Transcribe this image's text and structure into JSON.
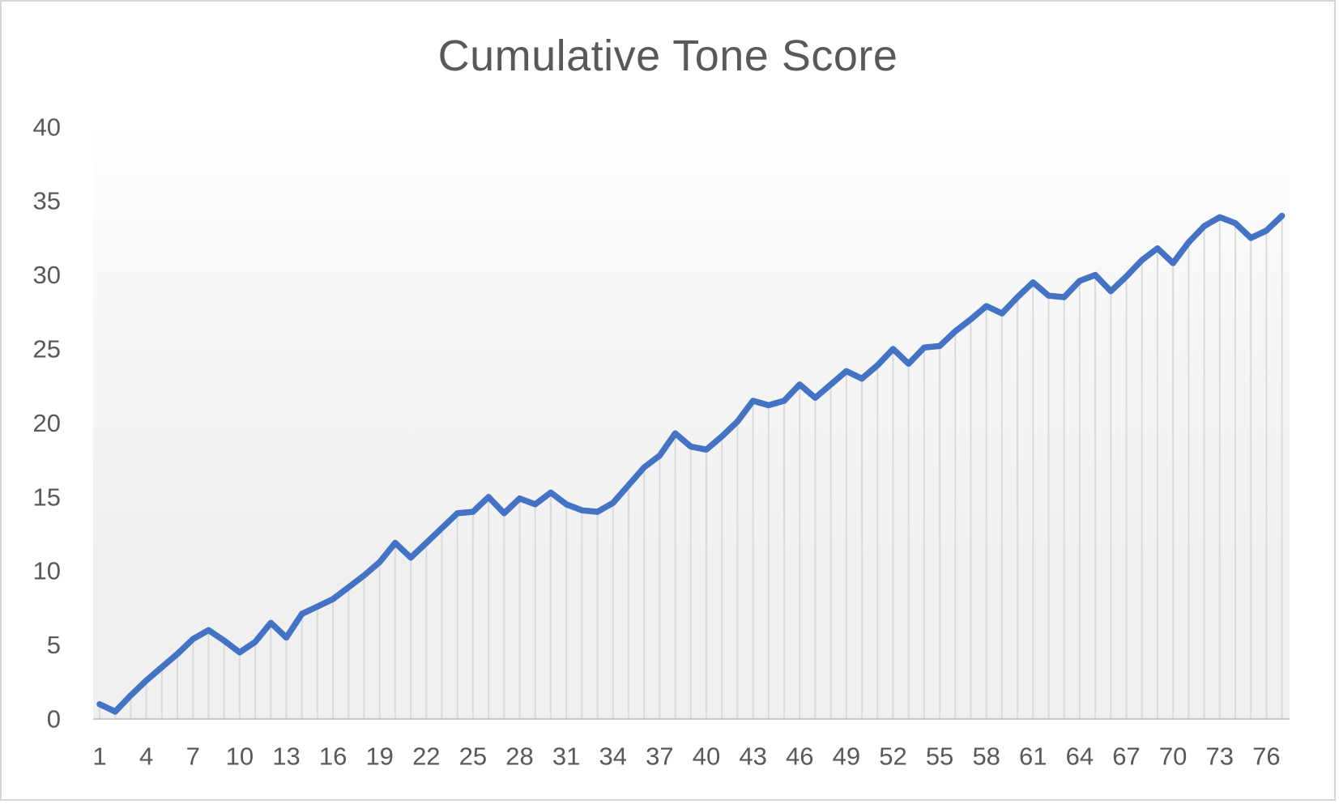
{
  "chart_data": {
    "type": "line",
    "title": "Cumulative Tone Score",
    "series_name": "Cumulative Tone Score",
    "x": [
      1,
      2,
      3,
      4,
      5,
      6,
      7,
      8,
      9,
      10,
      11,
      12,
      13,
      14,
      15,
      16,
      17,
      18,
      19,
      20,
      21,
      22,
      23,
      24,
      25,
      26,
      27,
      28,
      29,
      30,
      31,
      32,
      33,
      34,
      35,
      36,
      37,
      38,
      39,
      40,
      41,
      42,
      43,
      44,
      45,
      46,
      47,
      48,
      49,
      50,
      51,
      52,
      53,
      54,
      55,
      56,
      57,
      58,
      59,
      60,
      61,
      62,
      63,
      64,
      65,
      66,
      67,
      68,
      69,
      70,
      71,
      72,
      73,
      74,
      75,
      76,
      77
    ],
    "values": [
      1.0,
      0.5,
      1.6,
      2.6,
      3.5,
      4.4,
      5.4,
      6.0,
      5.3,
      4.5,
      5.2,
      6.5,
      5.5,
      7.1,
      7.6,
      8.1,
      8.9,
      9.7,
      10.6,
      11.9,
      10.9,
      11.9,
      12.9,
      13.9,
      14.0,
      15.0,
      13.9,
      14.9,
      14.5,
      15.3,
      14.5,
      14.1,
      14.0,
      14.6,
      15.8,
      17.0,
      17.8,
      19.3,
      18.4,
      18.2,
      19.1,
      20.1,
      21.5,
      21.2,
      21.5,
      22.6,
      21.7,
      22.6,
      23.5,
      23.0,
      23.9,
      25.0,
      24.0,
      25.1,
      25.2,
      26.2,
      27.0,
      27.9,
      27.4,
      28.5,
      29.5,
      28.6,
      28.5,
      29.6,
      30.0,
      28.9,
      29.9,
      31.0,
      31.8,
      30.8,
      32.2,
      33.3,
      33.9,
      33.5,
      32.5,
      33.0,
      34.0
    ],
    "xlabel": "",
    "ylabel": "",
    "ylim": [
      0,
      40
    ],
    "y_tick_step": 5,
    "y_tick_labels": [
      "0",
      "5",
      "10",
      "15",
      "20",
      "25",
      "30",
      "35",
      "40"
    ],
    "x_tick_labels": [
      "1",
      "4",
      "7",
      "10",
      "13",
      "16",
      "19",
      "22",
      "25",
      "28",
      "31",
      "34",
      "37",
      "40",
      "43",
      "46",
      "49",
      "52",
      "55",
      "58",
      "61",
      "64",
      "67",
      "70",
      "73",
      "76"
    ],
    "legend": "none",
    "grid": "vertical droplines from each data point to baseline",
    "colors": {
      "line": "#4472C4",
      "dropline": "#dbdbdb",
      "axis_line": "#c9c9c9",
      "tick_label": "#595959",
      "title": "#595959",
      "plot_bg_top": "#ffffff",
      "plot_bg_mid": "#f6f6f6",
      "plot_bg_bottom": "#f0f0f0",
      "frame_border": "#d7d7d7"
    }
  }
}
